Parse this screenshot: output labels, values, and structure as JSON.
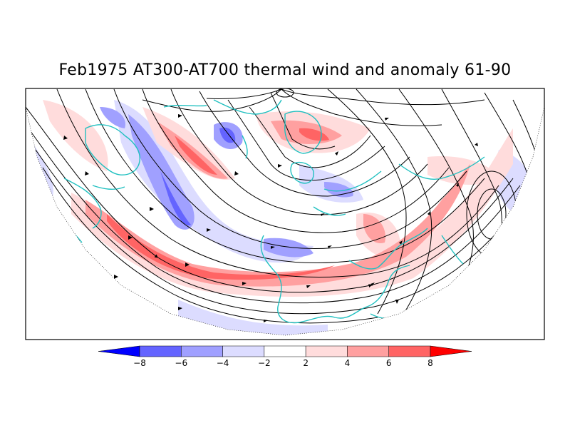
{
  "title": "Feb1975 AT300-AT700 thermal wind and anomaly 61-90",
  "colors": {
    "land_outline": "#20c0c0",
    "streamline": "#000000",
    "neg_strong": "#6464ff",
    "neg_mid": "#a0a0ff",
    "neg_weak": "#dcdcff",
    "neutral": "#ffffff",
    "pos_weak": "#ffdcdc",
    "pos_mid": "#ffa0a0",
    "pos_strong": "#ff6464",
    "extreme_neg": "#0000ff",
    "extreme_pos": "#ff0000"
  },
  "legend": {
    "levels": [
      "-8",
      "-6",
      "-4",
      "-2",
      "2",
      "4",
      "6",
      "8"
    ],
    "bins": [
      "extreme_neg",
      "neg_strong",
      "neg_mid",
      "neg_weak",
      "neutral",
      "pos_weak",
      "pos_mid",
      "pos_strong",
      "extreme_pos"
    ]
  }
}
